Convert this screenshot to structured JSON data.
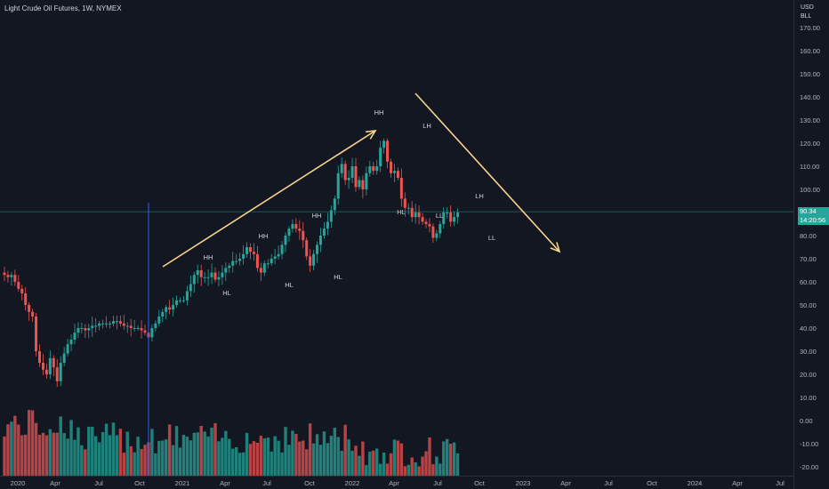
{
  "header": {
    "symbol_title": "Light Crude Oil Futures, 1W, NYMEX",
    "currency": "USD",
    "unit": "BLL"
  },
  "price_tag": {
    "price": "90.34",
    "countdown": "14:20:56",
    "color": "#26a69a"
  },
  "colors": {
    "background": "#131722",
    "up": "#26a69a",
    "down": "#ef5350",
    "arrow": "#f9d38c",
    "vertical_marker": "#2962ff"
  },
  "chart_data": {
    "type": "candlestick",
    "symbol": "Light Crude Oil Futures",
    "interval": "1W",
    "exchange": "NYMEX",
    "x_tick_labels": [
      "2020",
      "Apr",
      "Jul",
      "Oct",
      "2021",
      "Apr",
      "Jul",
      "Oct",
      "2022",
      "Apr",
      "Jul",
      "Oct",
      "2023",
      "Apr",
      "Jul",
      "Oct",
      "2024",
      "Apr",
      "Jul"
    ],
    "y_tick_labels": [
      "170.00",
      "160.00",
      "150.00",
      "140.00",
      "130.00",
      "120.00",
      "110.00",
      "100.00",
      "90.00",
      "80.00",
      "70.00",
      "60.00",
      "50.00",
      "40.00",
      "30.00",
      "20.00",
      "10.00",
      "0.00",
      "-10.00",
      "-20.00"
    ],
    "ylim": [
      -23,
      178
    ],
    "last_price": 90.34,
    "weekly_close_approx": [
      63,
      62,
      63,
      60,
      57,
      55,
      50,
      47,
      45,
      30,
      25,
      22,
      20,
      27,
      23,
      17,
      25,
      29,
      33,
      35,
      38,
      40,
      40,
      39,
      40,
      41,
      41,
      42,
      42,
      42,
      42,
      43,
      43,
      42,
      41,
      41,
      40,
      40,
      40,
      39,
      38,
      36,
      40,
      42,
      45,
      47,
      49,
      48,
      50,
      52,
      52,
      52,
      56,
      59,
      63,
      65,
      62,
      62,
      62,
      64,
      61,
      62,
      64,
      66,
      67,
      69,
      69,
      70,
      72,
      75,
      73,
      72,
      66,
      64,
      68,
      68,
      70,
      71,
      72,
      76,
      80,
      83,
      85,
      83,
      82,
      78,
      71,
      67,
      72,
      76,
      80,
      83,
      86,
      91,
      96,
      107,
      111,
      104,
      105,
      110,
      101,
      104,
      100,
      107,
      110,
      108,
      110,
      118,
      121,
      112,
      107,
      108,
      105,
      96,
      92,
      92,
      88,
      90,
      88,
      86,
      85,
      84,
      79,
      81,
      85,
      90,
      90,
      86,
      88,
      90
    ],
    "pattern_labels": [
      "HH",
      "HL",
      "HH",
      "HL",
      "HH",
      "HL",
      "HH",
      "HL",
      "LH",
      "LL",
      "LH",
      "LL"
    ],
    "annotations": [
      {
        "kind": "uptrend-arrow",
        "from": {
          "x": "2020-Oct",
          "y": 70
        },
        "to": {
          "x": "2022-Mar",
          "y": 122
        }
      },
      {
        "kind": "downtrend-arrow",
        "from": {
          "x": "2022-May",
          "y": 144
        },
        "to": {
          "x": "2023-Mar",
          "y": 72
        }
      },
      {
        "kind": "vertical-line",
        "x": "2020-Nov-01"
      },
      {
        "kind": "horizontal-line",
        "y": 90.34
      }
    ],
    "volume_visible": true,
    "grid": false
  }
}
